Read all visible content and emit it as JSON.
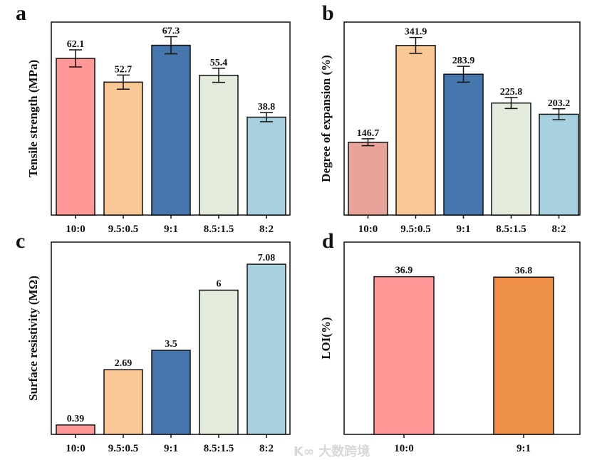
{
  "watermark": "大数跨境",
  "chart_data": [
    {
      "panel": "a",
      "type": "bar",
      "ylabel": "Tensile strength (MPa)",
      "categories": [
        "10:0",
        "9.5:0.5",
        "9:1",
        "8.5:1.5",
        "8:2"
      ],
      "values": [
        62.1,
        52.7,
        67.3,
        55.4,
        38.8
      ],
      "labels": [
        "62.1",
        "52.7",
        "67.3",
        "55.4",
        "38.8"
      ],
      "errors": [
        3.4,
        2.8,
        3.4,
        2.8,
        1.8
      ],
      "colors": [
        "#FF9896",
        "#F9C794",
        "#4577AE",
        "#E3EBDD",
        "#A8D1E0"
      ],
      "ylim": [
        0,
        76.5
      ]
    },
    {
      "panel": "b",
      "type": "bar",
      "ylabel": "Degree of expansion (%)",
      "categories": [
        "10:0",
        "9.5:0.5",
        "9:1",
        "8.5:1.5",
        "8:2"
      ],
      "values": [
        146.7,
        341.9,
        283.9,
        225.8,
        203.2
      ],
      "labels": [
        "146.7",
        "341.9",
        "283.9",
        "225.8",
        "203.2"
      ],
      "errors": [
        7,
        16,
        16,
        11,
        11
      ],
      "colors": [
        "#E8A39A",
        "#F9C794",
        "#4577AE",
        "#E3EBDD",
        "#A8D1E0"
      ],
      "ylim": [
        0,
        389
      ]
    },
    {
      "panel": "c",
      "type": "bar",
      "ylabel": "Surface resistivity (MΩ)",
      "categories": [
        "10:0",
        "9.5:0.5",
        "9:1",
        "8.5:1.5",
        "8:2"
      ],
      "values": [
        0.39,
        2.69,
        3.5,
        6,
        7.08
      ],
      "labels": [
        "0.39",
        "2.69",
        "3.5",
        "6",
        "7.08"
      ],
      "colors": [
        "#FF9896",
        "#F9C794",
        "#4577AE",
        "#E3EBDD",
        "#A8D1E0"
      ],
      "ylim": [
        0,
        8
      ]
    },
    {
      "panel": "d",
      "type": "bar",
      "ylabel": "LOI(%)",
      "categories": [
        "10:0",
        "9:1"
      ],
      "values": [
        36.9,
        36.8
      ],
      "labels": [
        "36.9",
        "36.8"
      ],
      "colors": [
        "#FF9896",
        "#EE8F47"
      ],
      "ylim": [
        0,
        45
      ]
    }
  ]
}
